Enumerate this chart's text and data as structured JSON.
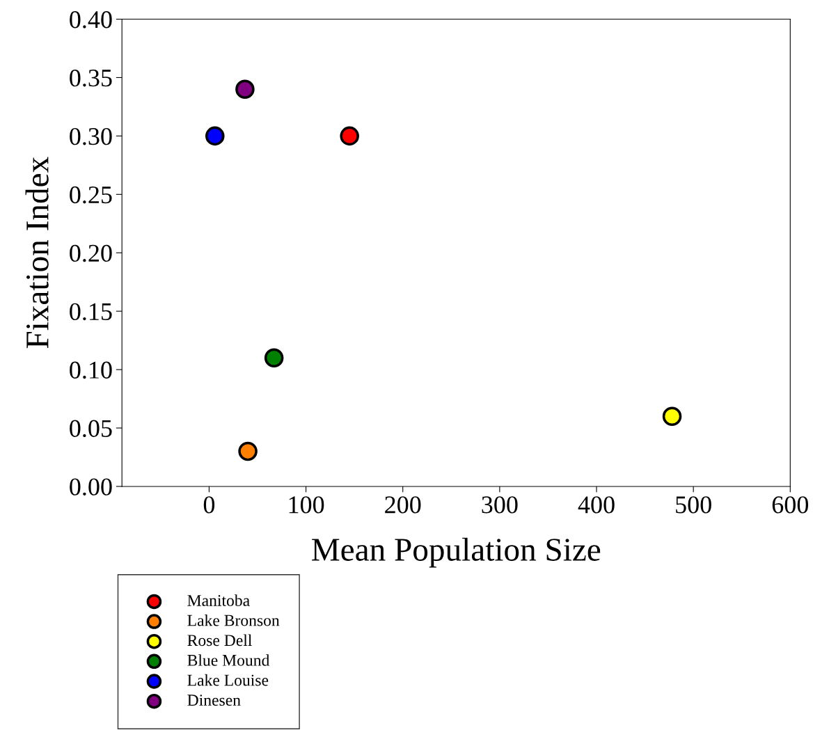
{
  "chart_data": {
    "type": "scatter",
    "xlabel": "Mean Population Size",
    "ylabel": "Fixation Index",
    "xlim": [
      -90,
      600
    ],
    "xticks": [
      0,
      100,
      200,
      300,
      400,
      500,
      600
    ],
    "ylim": [
      0,
      0.4
    ],
    "yticks": [
      {
        "value": 0,
        "label": "0.00"
      },
      {
        "value": 0.05,
        "label": "0.05"
      },
      {
        "value": 0.1,
        "label": "0.10"
      },
      {
        "value": 0.15,
        "label": "0.15"
      },
      {
        "value": 0.2,
        "label": "0.20"
      },
      {
        "value": 0.25,
        "label": "0.25"
      },
      {
        "value": 0.3,
        "label": "0.30"
      },
      {
        "value": 0.35,
        "label": "0.35"
      },
      {
        "value": 0.4,
        "label": "0.40"
      }
    ],
    "marker": "circle",
    "legend": "bottom left",
    "grid": false,
    "series": [
      {
        "name": "Manitoba",
        "color": "#ff0000",
        "x": [
          145
        ],
        "values": [
          0.3
        ]
      },
      {
        "name": "Lake Bronson",
        "color": "#ff8000",
        "x": [
          40
        ],
        "values": [
          0.03
        ]
      },
      {
        "name": "Rose Dell",
        "color": "#ffff00",
        "x": [
          478
        ],
        "values": [
          0.06
        ]
      },
      {
        "name": "Blue Mound",
        "color": "#008000",
        "x": [
          67
        ],
        "values": [
          0.11
        ]
      },
      {
        "name": "Lake Louise",
        "color": "#0000ff",
        "x": [
          6
        ],
        "values": [
          0.3
        ]
      },
      {
        "name": "Dinesen",
        "color": "#800080",
        "x": [
          37
        ],
        "values": [
          0.34
        ]
      }
    ]
  }
}
